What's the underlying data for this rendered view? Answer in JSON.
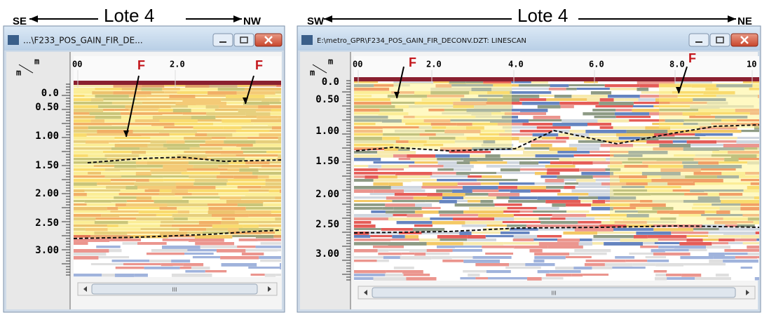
{
  "left_window": {
    "header": {
      "left": "SE",
      "title": "Lote 4",
      "right": "NW"
    },
    "title_bar": "...\\F233_POS_GAIN_FIR_DE...",
    "unit_top": "m",
    "unit_bottom": "m",
    "x_labels": [
      "00",
      "2.0"
    ],
    "depth_labels": [
      "0.0",
      "0.50",
      "1.00",
      "1.50",
      "2.00",
      "2.50",
      "3.00"
    ],
    "markers": [
      "F",
      "F"
    ],
    "scroll_grip": "III"
  },
  "right_window": {
    "header": {
      "left": "SW",
      "title": "Lote 4",
      "right": "NE"
    },
    "title_bar": "E:\\metro_GPR\\F234_POS_GAIN_FIR_DECONV.DZT:  LINESCAN",
    "unit_top": "m",
    "unit_bottom": "m",
    "x_labels": [
      "00",
      "2.0",
      "4.0",
      "6.0",
      "8.0",
      "10"
    ],
    "depth_labels": [
      "0.0",
      "0.50",
      "1.00",
      "1.50",
      "2.00",
      "2.50",
      "3.00"
    ],
    "markers": [
      "F",
      "F"
    ],
    "scroll_grip": "III"
  }
}
